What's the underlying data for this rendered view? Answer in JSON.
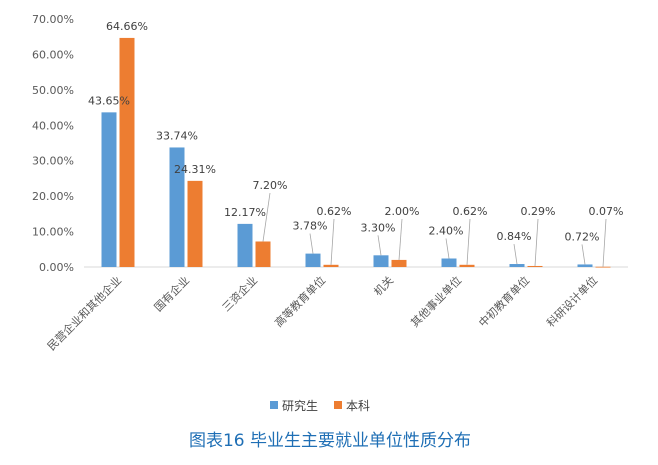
{
  "chart_data": {
    "type": "bar",
    "title": "",
    "xlabel": "",
    "ylabel": "",
    "ylim": [
      0,
      70
    ],
    "y_unit": "%",
    "y_ticks": [
      "0.00%",
      "10.00%",
      "20.00%",
      "30.00%",
      "40.00%",
      "50.00%",
      "60.00%",
      "70.00%"
    ],
    "grid": false,
    "legend_position": "bottom",
    "categories": [
      "民营企业和其他企业",
      "国有企业",
      "三资企业",
      "高等教育单位",
      "机关",
      "其他事业单位",
      "中初教育单位",
      "科研设计单位"
    ],
    "series": [
      {
        "name": "研究生",
        "color": "#5b9bd5",
        "values": [
          43.65,
          33.74,
          12.17,
          3.78,
          3.3,
          2.4,
          0.84,
          0.72
        ],
        "labels": [
          "43.65%",
          "33.74%",
          "12.17%",
          "3.78%",
          "3.30%",
          "2.40%",
          "0.84%",
          "0.72%"
        ]
      },
      {
        "name": "本科",
        "color": "#ed7d31",
        "values": [
          64.66,
          24.31,
          7.2,
          0.62,
          2.0,
          0.62,
          0.29,
          0.07
        ],
        "labels": [
          "64.66%",
          "24.31%",
          "7.20%",
          "0.62%",
          "2.00%",
          "0.62%",
          "0.29%",
          "0.07%"
        ]
      }
    ]
  },
  "caption": "图表16   毕业生主要就业单位性质分布"
}
